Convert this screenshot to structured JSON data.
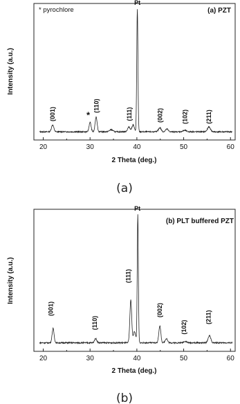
{
  "chart_data": [
    {
      "type": "line",
      "panel_label": "(a) PZT",
      "legend_text": "* pyrochlore",
      "xlabel": "2 Theta (deg.)",
      "ylabel": "Intensity (a.u.)",
      "xlim": [
        18,
        61
      ],
      "ylim": [
        0,
        100
      ],
      "xticks": [
        20,
        30,
        40,
        50,
        60
      ],
      "caption": "(a)",
      "baseline": 6,
      "peaks": [
        {
          "x": 22.0,
          "h": 5,
          "w": 0.35
        },
        {
          "x": 30.0,
          "h": 7,
          "w": 0.3
        },
        {
          "x": 31.3,
          "h": 11,
          "w": 0.3
        },
        {
          "x": 34.5,
          "h": 1.5,
          "w": 0.5
        },
        {
          "x": 38.3,
          "h": 3.5,
          "w": 0.4
        },
        {
          "x": 39.2,
          "h": 5,
          "w": 0.35
        },
        {
          "x": 40.1,
          "h": 90,
          "w": 0.18
        },
        {
          "x": 44.9,
          "h": 3,
          "w": 0.4
        },
        {
          "x": 46.4,
          "h": 2,
          "w": 0.4
        },
        {
          "x": 50.2,
          "h": 1,
          "w": 0.5
        },
        {
          "x": 55.4,
          "h": 3.5,
          "w": 0.45
        }
      ],
      "annotations": [
        {
          "text": "(001)",
          "x": 22.0,
          "y": 19,
          "vertical": true
        },
        {
          "text": "*",
          "x": 29.6,
          "y": 16,
          "vertical": false
        },
        {
          "text": "(110)",
          "x": 31.4,
          "y": 25,
          "vertical": true
        },
        {
          "text": "(111)",
          "x": 38.4,
          "y": 19,
          "vertical": true
        },
        {
          "text": "Pt",
          "x": 40.1,
          "y": 99,
          "vertical": false
        },
        {
          "text": "(002)",
          "x": 45.0,
          "y": 18,
          "vertical": true
        },
        {
          "text": "(102)",
          "x": 50.3,
          "y": 17,
          "vertical": true
        },
        {
          "text": "(211)",
          "x": 55.4,
          "y": 17,
          "vertical": true
        }
      ]
    },
    {
      "type": "line",
      "panel_label": "(b) PLT buffered PZT",
      "legend_text": "",
      "xlabel": "2 Theta (deg.)",
      "ylabel": "Intensity (a.u.)",
      "xlim": [
        18,
        61
      ],
      "ylim": [
        0,
        100
      ],
      "xticks": [
        20,
        30,
        40,
        50,
        60
      ],
      "caption": "(b)",
      "baseline": 6,
      "peaks": [
        {
          "x": 22.1,
          "h": 10,
          "w": 0.3
        },
        {
          "x": 31.2,
          "h": 3,
          "w": 0.35
        },
        {
          "x": 38.7,
          "h": 30,
          "w": 0.28
        },
        {
          "x": 39.5,
          "h": 8,
          "w": 0.35
        },
        {
          "x": 40.2,
          "h": 90,
          "w": 0.17
        },
        {
          "x": 44.9,
          "h": 12,
          "w": 0.3
        },
        {
          "x": 46.3,
          "h": 3,
          "w": 0.35
        },
        {
          "x": 50.3,
          "h": 1,
          "w": 0.5
        },
        {
          "x": 55.5,
          "h": 5,
          "w": 0.4
        }
      ],
      "annotations": [
        {
          "text": "(001)",
          "x": 21.6,
          "y": 30,
          "vertical": true
        },
        {
          "text": "(110)",
          "x": 31.0,
          "y": 20,
          "vertical": true
        },
        {
          "text": "(111)",
          "x": 38.2,
          "y": 53,
          "vertical": true
        },
        {
          "text": "Pt",
          "x": 40.1,
          "y": 99,
          "vertical": false
        },
        {
          "text": "(002)",
          "x": 44.9,
          "y": 29,
          "vertical": true
        },
        {
          "text": "(102)",
          "x": 50.1,
          "y": 17,
          "vertical": true
        },
        {
          "text": "(211)",
          "x": 55.3,
          "y": 24,
          "vertical": true
        }
      ]
    }
  ]
}
